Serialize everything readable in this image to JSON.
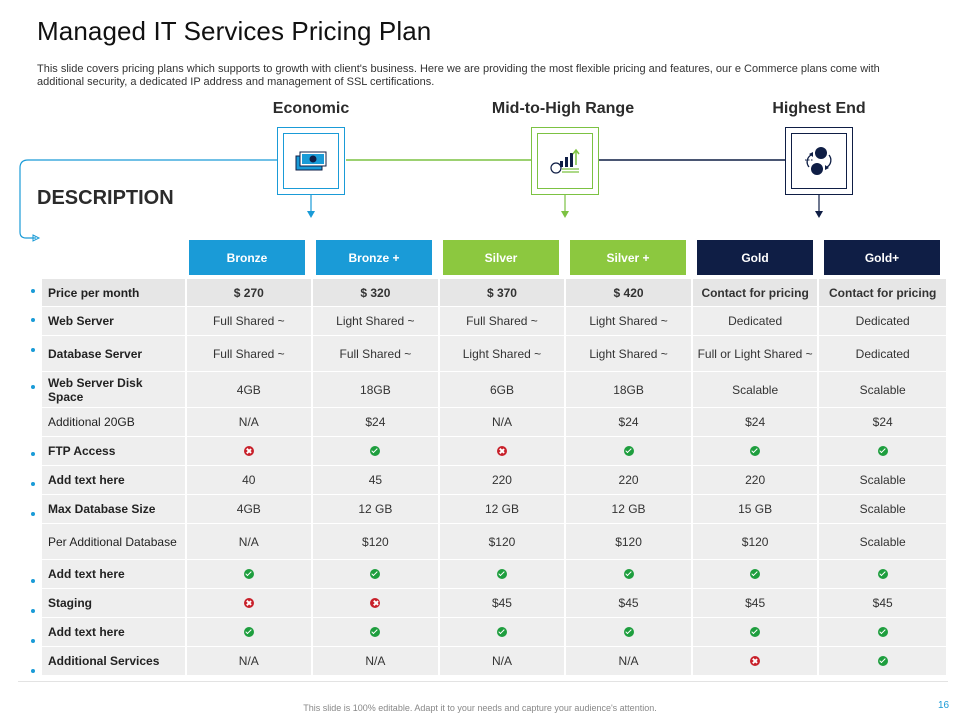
{
  "title": "Managed IT Services Pricing Plan",
  "subtitle": "This slide covers pricing plans which supports to growth with client's business. Here we are providing the most flexible pricing and features, our e Commerce plans come with additional security, a dedicated IP address and management of SSL certifications.",
  "tiers": [
    {
      "label": "Economic",
      "icon": "money-bills-icon",
      "color": "#1a9bd7"
    },
    {
      "label": "Mid-to-High Range",
      "icon": "growth-chart-icon",
      "color": "#7cc242"
    },
    {
      "label": "Highest End",
      "icon": "exchange-icon",
      "color": "#0f1e45"
    }
  ],
  "description_heading": "DESCRIPTION",
  "plans": [
    {
      "label": "Bronze",
      "color": "#1a9bd7"
    },
    {
      "label": "Bronze +",
      "color": "#1a9bd7"
    },
    {
      "label": "Silver",
      "color": "#8cc83f"
    },
    {
      "label": "Silver +",
      "color": "#8cc83f"
    },
    {
      "label": "Gold",
      "color": "#0f1e45"
    },
    {
      "label": "Gold+",
      "color": "#0f1e45"
    }
  ],
  "rows": [
    {
      "label": "Price per month",
      "bold": true,
      "bullet": true,
      "values": [
        "$ 270",
        "$ 320",
        "$ 370",
        "$ 420",
        "Contact for pricing",
        "Contact for pricing"
      ]
    },
    {
      "label": "Web Server",
      "bold": true,
      "bullet": true,
      "values": [
        "Full Shared ~",
        "Light Shared ~",
        "Full Shared ~",
        "Light Shared ~",
        "Dedicated",
        "Dedicated"
      ]
    },
    {
      "label": "Database Server",
      "bold": true,
      "bullet": true,
      "values": [
        "Full Shared ~",
        "Full Shared ~",
        "Light Shared ~",
        "Light Shared ~",
        "Full or Light Shared ~",
        "Dedicated"
      ]
    },
    {
      "label": "Web Server Disk Space",
      "bold": true,
      "bullet": true,
      "values": [
        "4GB",
        "18GB",
        "6GB",
        "18GB",
        "Scalable",
        "Scalable"
      ]
    },
    {
      "label": "Additional 20GB",
      "bold": false,
      "bullet": false,
      "values": [
        "N/A",
        "$24",
        "N/A",
        "$24",
        "$24",
        "$24"
      ]
    },
    {
      "label": "FTP Access",
      "bold": true,
      "bullet": true,
      "values": [
        "#no",
        "#ok",
        "#no",
        "#ok",
        "#ok",
        "#ok"
      ]
    },
    {
      "label": "Add text here",
      "bold": true,
      "bullet": true,
      "values": [
        "40",
        "45",
        "220",
        "220",
        "220",
        "Scalable"
      ]
    },
    {
      "label": "Max Database Size",
      "bold": true,
      "bullet": true,
      "values": [
        "4GB",
        "12 GB",
        "12 GB",
        "12 GB",
        "15 GB",
        "Scalable"
      ]
    },
    {
      "label": "Per Additional Database",
      "bold": false,
      "bullet": false,
      "values": [
        "N/A",
        "$120",
        "$120",
        "$120",
        "$120",
        "Scalable"
      ]
    },
    {
      "label": "Add text here",
      "bold": true,
      "bullet": true,
      "values": [
        "#ok",
        "#ok",
        "#ok",
        "#ok",
        "#ok",
        "#ok"
      ]
    },
    {
      "label": "Staging",
      "bold": true,
      "bullet": true,
      "values": [
        "#no",
        "#no",
        "$45",
        "$45",
        "$45",
        "$45"
      ]
    },
    {
      "label": "Add text here",
      "bold": true,
      "bullet": true,
      "values": [
        "#ok",
        "#ok",
        "#ok",
        "#ok",
        "#ok",
        "#ok"
      ]
    },
    {
      "label": "Additional  Services",
      "bold": true,
      "bullet": true,
      "values": [
        "N/A",
        "N/A",
        "N/A",
        "N/A",
        "#no",
        "#ok"
      ]
    }
  ],
  "footer": "This slide is 100% editable. Adapt it to your needs and capture your audience's attention.",
  "page_number": "16"
}
